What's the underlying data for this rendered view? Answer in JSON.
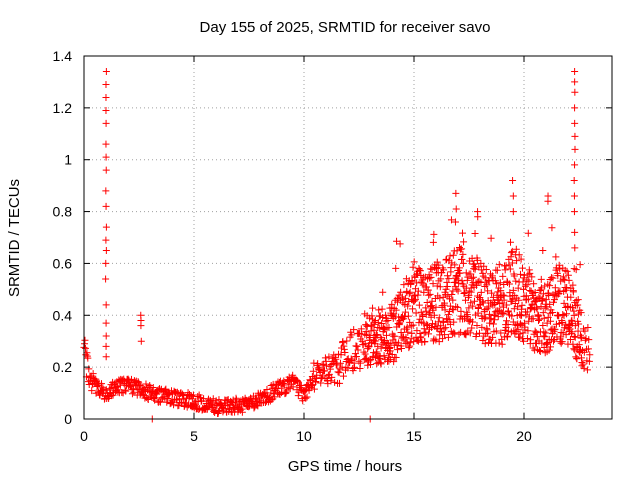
{
  "chart_data": {
    "type": "scatter",
    "title": "Day 155 of 2025, SRMTID for receiver savo",
    "xlabel": "GPS time / hours",
    "ylabel": "SRMTID / TECUs",
    "xlim": [
      0,
      24
    ],
    "ylim": [
      0,
      1.4
    ],
    "xticks": [
      0,
      5,
      10,
      15,
      20
    ],
    "yticks": [
      0,
      0.2,
      0.4,
      0.6,
      0.8,
      1,
      1.2,
      1.4
    ],
    "xtick_labels": [
      "0",
      "5",
      "10",
      "15",
      "20"
    ],
    "ytick_labels": [
      "0",
      "0.2",
      "0.4",
      "0.6",
      "0.8",
      "1",
      "1.2",
      "1.4"
    ],
    "grid": true,
    "marker": "+",
    "series_color": "#ff0000",
    "series": [
      {
        "name": "SRMTID",
        "trend": [
          [
            0.0,
            0.25
          ],
          [
            0.3,
            0.17
          ],
          [
            0.6,
            0.12
          ],
          [
            1.0,
            0.1
          ],
          [
            1.5,
            0.12
          ],
          [
            2.0,
            0.13
          ],
          [
            2.5,
            0.12
          ],
          [
            3.0,
            0.1
          ],
          [
            3.5,
            0.09
          ],
          [
            4.0,
            0.08
          ],
          [
            5.0,
            0.07
          ],
          [
            6.0,
            0.05
          ],
          [
            7.0,
            0.05
          ],
          [
            8.0,
            0.08
          ],
          [
            9.0,
            0.12
          ],
          [
            9.5,
            0.14
          ],
          [
            10.0,
            0.09
          ],
          [
            10.5,
            0.17
          ],
          [
            11.0,
            0.18
          ],
          [
            11.5,
            0.2
          ],
          [
            12.0,
            0.24
          ],
          [
            12.5,
            0.28
          ],
          [
            13.0,
            0.32
          ],
          [
            13.5,
            0.32
          ],
          [
            14.0,
            0.33
          ],
          [
            14.5,
            0.38
          ],
          [
            15.0,
            0.45
          ],
          [
            15.5,
            0.42
          ],
          [
            16.0,
            0.45
          ],
          [
            16.5,
            0.48
          ],
          [
            17.0,
            0.5
          ],
          [
            17.5,
            0.48
          ],
          [
            18.0,
            0.46
          ],
          [
            18.5,
            0.43
          ],
          [
            19.0,
            0.44
          ],
          [
            19.5,
            0.5
          ],
          [
            20.0,
            0.45
          ],
          [
            20.5,
            0.4
          ],
          [
            21.0,
            0.38
          ],
          [
            21.5,
            0.45
          ],
          [
            22.0,
            0.42
          ],
          [
            22.5,
            0.32
          ],
          [
            23.0,
            0.25
          ]
        ],
        "spikes": [
          {
            "x": 1.0,
            "y": [
              1.34,
              1.29,
              1.24,
              1.19,
              1.14,
              1.06,
              1.01,
              0.96,
              0.88,
              0.82,
              0.74,
              0.69,
              0.65,
              0.6,
              0.54,
              0.44,
              0.37,
              0.32,
              0.28,
              0.24
            ]
          },
          {
            "x": 2.6,
            "y": [
              0.4,
              0.38,
              0.36,
              0.3
            ]
          },
          {
            "x": 3.1,
            "y": [
              0.0
            ]
          },
          {
            "x": 13.0,
            "y": [
              0.0
            ]
          },
          {
            "x": 16.9,
            "y": [
              0.87,
              0.81,
              0.76
            ]
          },
          {
            "x": 17.9,
            "y": [
              0.8,
              0.78
            ]
          },
          {
            "x": 19.5,
            "y": [
              0.92,
              0.86,
              0.8
            ]
          },
          {
            "x": 21.1,
            "y": [
              0.86,
              0.84
            ]
          },
          {
            "x": 22.3,
            "y": [
              1.34,
              1.3,
              1.26,
              1.2,
              1.14,
              1.09,
              1.04,
              0.98,
              0.92,
              0.86,
              0.8,
              0.72,
              0.66,
              0.58
            ]
          }
        ]
      }
    ]
  }
}
